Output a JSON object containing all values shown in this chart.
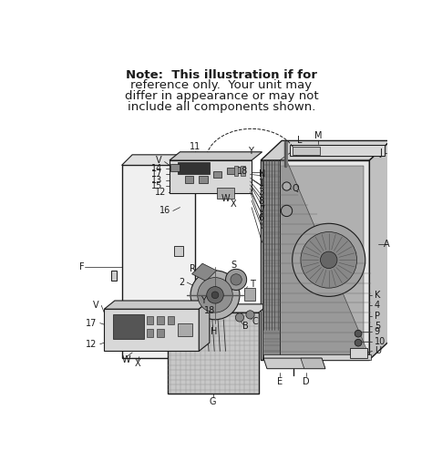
{
  "title_lines": [
    "Note:  This illustration if for",
    "reference only.  Your unit may",
    "differ in appearance or may not",
    "include all components shown."
  ],
  "bg_color": "#f5f5f5",
  "line_color": "#1a1a1a",
  "title_fontsize": 9.5,
  "label_fontsize": 7.0
}
